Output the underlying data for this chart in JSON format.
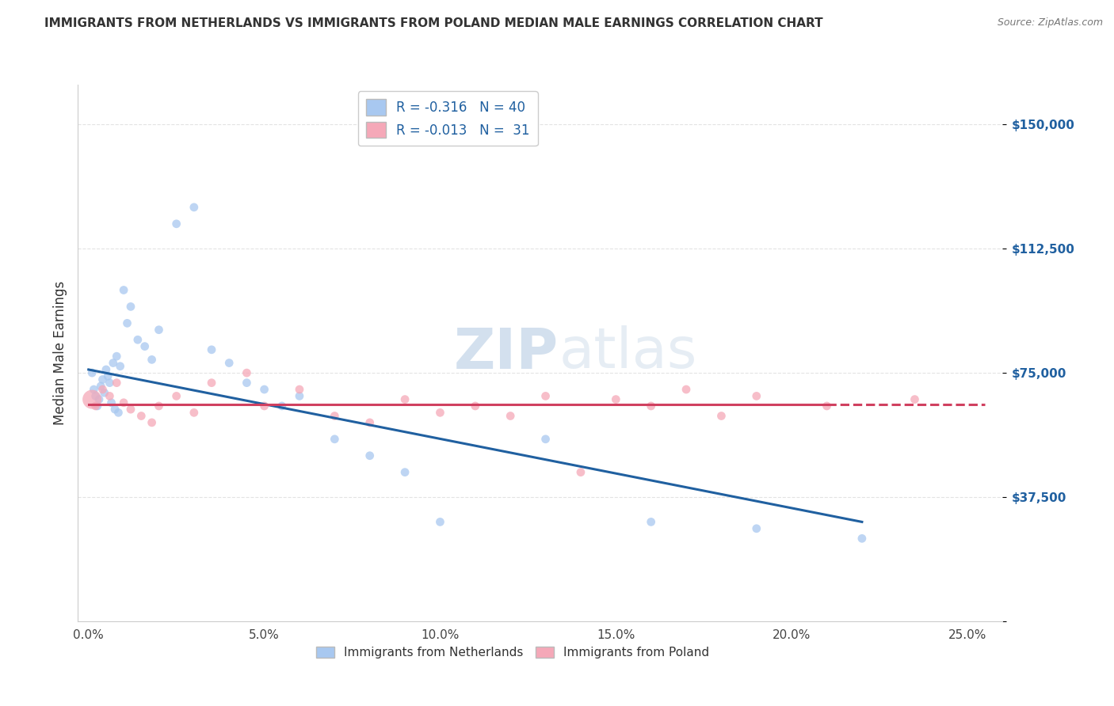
{
  "title": "IMMIGRANTS FROM NETHERLANDS VS IMMIGRANTS FROM POLAND MEDIAN MALE EARNINGS CORRELATION CHART",
  "source": "Source: ZipAtlas.com",
  "ylabel": "Median Male Earnings",
  "xlabel_ticks": [
    "0.0%",
    "5.0%",
    "10.0%",
    "15.0%",
    "20.0%",
    "25.0%"
  ],
  "xlabel_vals": [
    0.0,
    5.0,
    10.0,
    15.0,
    20.0,
    25.0
  ],
  "yticks": [
    0,
    37500,
    75000,
    112500,
    150000
  ],
  "ytick_labels": [
    "",
    "$37,500",
    "$75,000",
    "$112,500",
    "$150,000"
  ],
  "ylim": [
    15000,
    162000
  ],
  "xlim": [
    -0.3,
    26.0
  ],
  "netherlands_color": "#a8c8f0",
  "poland_color": "#f5a8b8",
  "netherlands_line_color": "#2060a0",
  "poland_line_color": "#d04060",
  "R_netherlands": -0.316,
  "N_netherlands": 40,
  "R_poland": -0.013,
  "N_poland": 31,
  "background_color": "#ffffff",
  "grid_color": "#dddddd",
  "netherlands_x": [
    0.1,
    0.15,
    0.2,
    0.25,
    0.3,
    0.35,
    0.4,
    0.45,
    0.5,
    0.55,
    0.6,
    0.65,
    0.7,
    0.75,
    0.8,
    0.85,
    0.9,
    1.0,
    1.1,
    1.2,
    1.4,
    1.6,
    1.8,
    2.0,
    2.5,
    3.0,
    3.5,
    4.0,
    4.5,
    5.0,
    5.5,
    6.0,
    7.0,
    8.0,
    9.0,
    10.0,
    13.0,
    16.0,
    19.0,
    22.0
  ],
  "netherlands_y": [
    75000,
    70000,
    68000,
    65000,
    67000,
    71000,
    73000,
    69000,
    76000,
    74000,
    72000,
    66000,
    78000,
    64000,
    80000,
    63000,
    77000,
    100000,
    90000,
    95000,
    85000,
    83000,
    79000,
    88000,
    120000,
    125000,
    82000,
    78000,
    72000,
    70000,
    65000,
    68000,
    55000,
    50000,
    45000,
    30000,
    55000,
    30000,
    28000,
    25000
  ],
  "netherlands_size": [
    60,
    60,
    60,
    60,
    60,
    60,
    60,
    60,
    60,
    60,
    60,
    60,
    60,
    60,
    60,
    60,
    60,
    60,
    60,
    60,
    60,
    60,
    60,
    60,
    60,
    60,
    60,
    60,
    60,
    60,
    60,
    60,
    60,
    60,
    60,
    60,
    60,
    60,
    60,
    60
  ],
  "poland_x": [
    0.1,
    0.2,
    0.4,
    0.6,
    0.8,
    1.0,
    1.2,
    1.5,
    1.8,
    2.0,
    2.5,
    3.0,
    3.5,
    4.5,
    5.0,
    6.0,
    7.0,
    8.0,
    9.0,
    10.0,
    11.0,
    12.0,
    13.0,
    14.0,
    15.0,
    16.0,
    17.0,
    18.0,
    19.0,
    21.0,
    23.5
  ],
  "poland_y": [
    67000,
    65000,
    70000,
    68000,
    72000,
    66000,
    64000,
    62000,
    60000,
    65000,
    68000,
    63000,
    72000,
    75000,
    65000,
    70000,
    62000,
    60000,
    67000,
    63000,
    65000,
    62000,
    68000,
    45000,
    67000,
    65000,
    70000,
    62000,
    68000,
    65000,
    67000
  ],
  "poland_size": [
    300,
    60,
    60,
    60,
    60,
    60,
    60,
    60,
    60,
    60,
    60,
    60,
    60,
    60,
    60,
    60,
    60,
    60,
    60,
    60,
    60,
    60,
    60,
    60,
    60,
    60,
    60,
    60,
    60,
    60,
    60
  ],
  "nl_trend_x0": 0.0,
  "nl_trend_y0": 76000,
  "nl_trend_x1": 22.0,
  "nl_trend_y1": 30000,
  "pl_trend_y": 65500,
  "pl_solid_end": 21.0,
  "pl_dash_end": 25.5
}
